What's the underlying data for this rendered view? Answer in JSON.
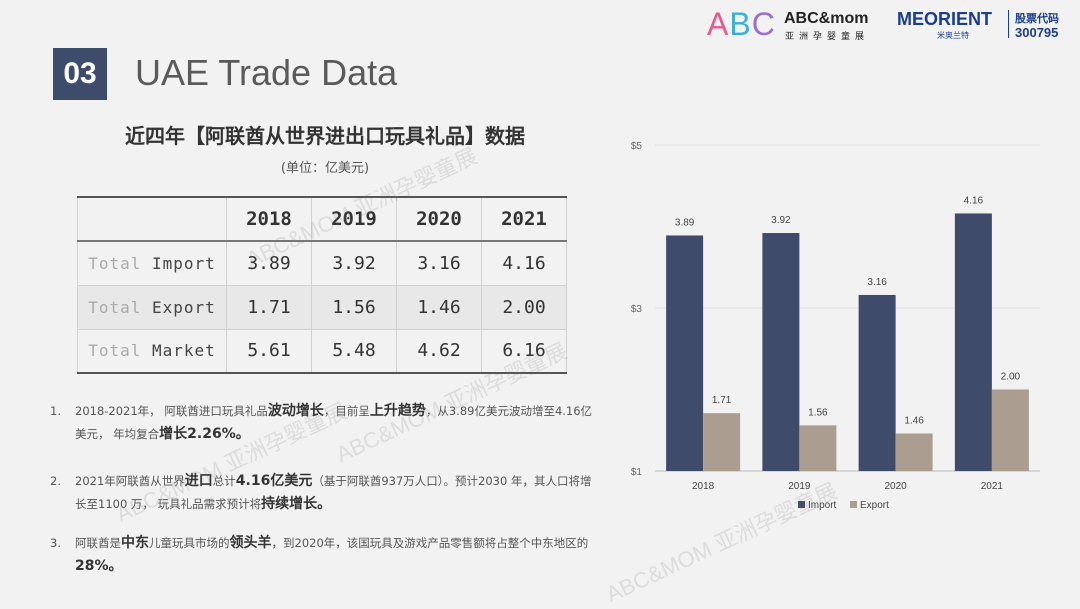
{
  "header": {
    "section_number": "03",
    "section_title": "UAE Trade Data",
    "logo_left_letters": "ABC",
    "logo_left_brand": "ABC&mom",
    "logo_left_sub": "亚洲孕婴童展",
    "logo_right_brand": "MEORIENT",
    "logo_right_sub": "米奥兰特",
    "stock_label": "股票代码",
    "stock_code": "300795"
  },
  "colors": {
    "badge": "#3e4c6b",
    "import": "#3f4b6b",
    "export": "#ab9e91"
  },
  "table": {
    "title": "近四年【阿联酋从世界进出口玩具礼品】数据",
    "unit": "(单位：亿美元)",
    "years": [
      "2018",
      "2019",
      "2020",
      "2021"
    ],
    "rows": [
      {
        "prefix": "Total",
        "label": "Import",
        "values": [
          "3.89",
          "3.92",
          "3.16",
          "4.16"
        ]
      },
      {
        "prefix": "Total",
        "label": "Export",
        "values": [
          "1.71",
          "1.56",
          "1.46",
          "2.00"
        ]
      },
      {
        "prefix": "Total",
        "label": "Market",
        "values": [
          "5.61",
          "5.48",
          "4.62",
          "6.16"
        ]
      }
    ]
  },
  "notes": [
    {
      "num": "1.",
      "parts": [
        {
          "t": "2018-2021年， 阿联酋进口玩具礼品"
        },
        {
          "t": "波动增长",
          "b": true
        },
        {
          "t": "，目前呈"
        },
        {
          "t": "上升趋势",
          "b": true
        },
        {
          "t": "，从3.89亿美元波动增至4.16亿美元， 年均复合"
        },
        {
          "t": "增长2.26%。",
          "b": true
        }
      ]
    },
    {
      "num": "2.",
      "parts": [
        {
          "t": "2021年阿联酋从世界"
        },
        {
          "t": "进口",
          "b": true
        },
        {
          "t": "总计"
        },
        {
          "t": "4.16亿美元",
          "b": true
        },
        {
          "t": "（基于阿联酋937万人口）。预计2030 年，其人口将增长至1100 万， 玩具礼品需求预计将"
        },
        {
          "t": "持续增长。",
          "b": true
        }
      ]
    },
    {
      "num": "3.",
      "parts": [
        {
          "t": "阿联酋是"
        },
        {
          "t": "中东",
          "b": true
        },
        {
          "t": "儿童玩具市场的"
        },
        {
          "t": "领头羊",
          "b": true
        },
        {
          "t": "，到2020年，该国玩具及游戏产品零售额将占整个中东地区的"
        },
        {
          "t": "28%。",
          "b": true
        }
      ]
    }
  ],
  "chart_data": {
    "type": "bar",
    "categories": [
      "2018",
      "2019",
      "2020",
      "2021"
    ],
    "series": [
      {
        "name": "Import",
        "values": [
          3.89,
          3.92,
          3.16,
          4.16
        ]
      },
      {
        "name": "Export",
        "values": [
          1.71,
          1.56,
          1.46,
          2.0
        ]
      }
    ],
    "value_labels": [
      [
        "3.89",
        "3.92",
        "3.16",
        "4.16"
      ],
      [
        "1.71",
        "1.56",
        "1.46",
        "2.00"
      ]
    ],
    "yticks": [
      "$5",
      "$3",
      "$1"
    ],
    "ylim": [
      1,
      5
    ],
    "legend_position": "bottom"
  },
  "watermarks": [
    "ABC&MOM 亚洲孕婴童展",
    "ABC&MOM 亚洲孕婴童展",
    "ABC&MOM 亚洲孕婴童展",
    "ABC&MOM 亚洲孕婴童展"
  ]
}
